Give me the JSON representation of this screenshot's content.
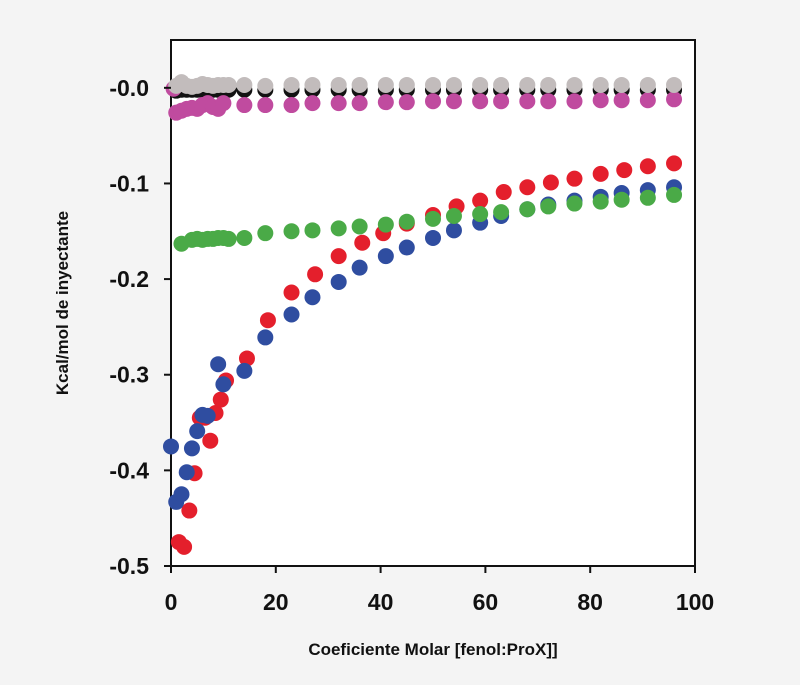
{
  "chart_data": {
    "type": "scatter",
    "title": "",
    "xlabel": "Coeficiente Molar [fenol:ProX]]",
    "ylabel": "Kcal/mol de inyectante",
    "xlim": [
      0,
      100
    ],
    "ylim": [
      -0.5,
      0.05
    ],
    "x_ticks": [
      0,
      20,
      40,
      60,
      80,
      100
    ],
    "x_tick_labels": [
      "0",
      "20",
      "40",
      "60",
      "80",
      "100"
    ],
    "y_ticks": [
      0.0,
      -0.1,
      -0.2,
      -0.3,
      -0.4,
      -0.5
    ],
    "y_tick_labels": [
      "-0.0",
      "-0.1",
      "-0.2",
      "-0.3",
      "-0.4",
      "-0.5"
    ],
    "grid": false,
    "legend": "none",
    "series": [
      {
        "color": "#121212",
        "points": [
          [
            1,
            -0.003
          ],
          [
            2,
            -0.002
          ],
          [
            3,
            -0.002
          ],
          [
            4,
            -0.002
          ],
          [
            5,
            -0.002
          ],
          [
            6,
            -0.002
          ],
          [
            7,
            -0.002
          ],
          [
            8,
            -0.002
          ],
          [
            9,
            -0.002
          ],
          [
            10,
            -0.002
          ],
          [
            11,
            -0.002
          ],
          [
            14,
            -0.002
          ],
          [
            18,
            -0.002
          ],
          [
            23,
            -0.002
          ],
          [
            27,
            -0.002
          ],
          [
            32,
            -0.002
          ],
          [
            36,
            -0.002
          ],
          [
            41,
            -0.002
          ],
          [
            45,
            -0.002
          ],
          [
            50,
            -0.002
          ],
          [
            54,
            -0.002
          ],
          [
            59,
            -0.002
          ],
          [
            63,
            -0.002
          ],
          [
            68,
            -0.002
          ],
          [
            72,
            -0.002
          ],
          [
            77,
            -0.002
          ],
          [
            82,
            -0.002
          ],
          [
            86,
            -0.002
          ],
          [
            91,
            -0.002
          ],
          [
            96,
            -0.002
          ]
        ]
      },
      {
        "color": "#c04b9f",
        "points": [
          [
            0.5,
            -0.001
          ],
          [
            1,
            -0.026
          ],
          [
            2,
            -0.024
          ],
          [
            3,
            -0.022
          ],
          [
            4,
            -0.021
          ],
          [
            5,
            -0.022
          ],
          [
            6,
            -0.018
          ],
          [
            7,
            -0.016
          ],
          [
            8,
            -0.02
          ],
          [
            9,
            -0.022
          ],
          [
            10,
            -0.016
          ],
          [
            14,
            -0.018
          ],
          [
            18,
            -0.018
          ],
          [
            23,
            -0.018
          ],
          [
            27,
            -0.016
          ],
          [
            32,
            -0.016
          ],
          [
            36,
            -0.016
          ],
          [
            41,
            -0.015
          ],
          [
            45,
            -0.015
          ],
          [
            50,
            -0.014
          ],
          [
            54,
            -0.014
          ],
          [
            59,
            -0.014
          ],
          [
            63,
            -0.014
          ],
          [
            68,
            -0.014
          ],
          [
            72,
            -0.014
          ],
          [
            77,
            -0.014
          ],
          [
            82,
            -0.013
          ],
          [
            86,
            -0.013
          ],
          [
            91,
            -0.013
          ],
          [
            96,
            -0.012
          ]
        ]
      },
      {
        "color": "#c2bcbc",
        "points": [
          [
            1,
            0.002
          ],
          [
            2,
            0.006
          ],
          [
            3,
            0.002
          ],
          [
            4,
            0.001
          ],
          [
            5,
            0.002
          ],
          [
            6,
            0.004
          ],
          [
            7,
            0.003
          ],
          [
            8,
            0.002
          ],
          [
            9,
            0.003
          ],
          [
            10,
            0.003
          ],
          [
            11,
            0.003
          ],
          [
            14,
            0.003
          ],
          [
            18,
            0.002
          ],
          [
            23,
            0.003
          ],
          [
            27,
            0.003
          ],
          [
            32,
            0.003
          ],
          [
            36,
            0.003
          ],
          [
            41,
            0.003
          ],
          [
            45,
            0.003
          ],
          [
            50,
            0.003
          ],
          [
            54,
            0.003
          ],
          [
            59,
            0.003
          ],
          [
            63,
            0.003
          ],
          [
            68,
            0.003
          ],
          [
            72,
            0.003
          ],
          [
            77,
            0.003
          ],
          [
            82,
            0.003
          ],
          [
            86,
            0.003
          ],
          [
            91,
            0.003
          ],
          [
            96,
            0.003
          ]
        ]
      },
      {
        "color": "#e41f2c",
        "points": [
          [
            1.5,
            -0.475
          ],
          [
            2.5,
            -0.48
          ],
          [
            3.5,
            -0.442
          ],
          [
            4.5,
            -0.403
          ],
          [
            5.5,
            -0.345
          ],
          [
            6.5,
            -0.345
          ],
          [
            7.5,
            -0.369
          ],
          [
            8.5,
            -0.34
          ],
          [
            9.5,
            -0.326
          ],
          [
            10.5,
            -0.306
          ],
          [
            14.5,
            -0.283
          ],
          [
            18.5,
            -0.243
          ],
          [
            23,
            -0.214
          ],
          [
            27.5,
            -0.195
          ],
          [
            32,
            -0.176
          ],
          [
            36.5,
            -0.162
          ],
          [
            40.5,
            -0.152
          ],
          [
            45,
            -0.142
          ],
          [
            50,
            -0.133
          ],
          [
            54.5,
            -0.124
          ],
          [
            59,
            -0.118
          ],
          [
            63.5,
            -0.109
          ],
          [
            68,
            -0.104
          ],
          [
            72.5,
            -0.099
          ],
          [
            77,
            -0.095
          ],
          [
            82,
            -0.09
          ],
          [
            86.5,
            -0.086
          ],
          [
            91,
            -0.082
          ],
          [
            96,
            -0.079
          ]
        ]
      },
      {
        "color": "#2f4da0",
        "points": [
          [
            0,
            -0.375
          ],
          [
            1,
            -0.433
          ],
          [
            2,
            -0.425
          ],
          [
            3,
            -0.402
          ],
          [
            4,
            -0.377
          ],
          [
            5,
            -0.359
          ],
          [
            6,
            -0.342
          ],
          [
            7,
            -0.343
          ],
          [
            9,
            -0.289
          ],
          [
            10,
            -0.31
          ],
          [
            14,
            -0.296
          ],
          [
            18,
            -0.261
          ],
          [
            23,
            -0.237
          ],
          [
            27,
            -0.219
          ],
          [
            32,
            -0.203
          ],
          [
            36,
            -0.188
          ],
          [
            41,
            -0.176
          ],
          [
            45,
            -0.167
          ],
          [
            50,
            -0.157
          ],
          [
            54,
            -0.149
          ],
          [
            59,
            -0.141
          ],
          [
            63,
            -0.134
          ],
          [
            68,
            -0.127
          ],
          [
            72,
            -0.122
          ],
          [
            77,
            -0.118
          ],
          [
            82,
            -0.114
          ],
          [
            86,
            -0.11
          ],
          [
            91,
            -0.107
          ],
          [
            96,
            -0.104
          ]
        ]
      },
      {
        "color": "#4aaa47",
        "points": [
          [
            2,
            -0.163
          ],
          [
            4,
            -0.159
          ],
          [
            5,
            -0.158
          ],
          [
            6,
            -0.159
          ],
          [
            7,
            -0.158
          ],
          [
            8,
            -0.158
          ],
          [
            9,
            -0.157
          ],
          [
            10,
            -0.157
          ],
          [
            11,
            -0.158
          ],
          [
            14,
            -0.157
          ],
          [
            18,
            -0.152
          ],
          [
            23,
            -0.15
          ],
          [
            27,
            -0.149
          ],
          [
            32,
            -0.147
          ],
          [
            36,
            -0.145
          ],
          [
            41,
            -0.143
          ],
          [
            45,
            -0.14
          ],
          [
            50,
            -0.137
          ],
          [
            54,
            -0.134
          ],
          [
            59,
            -0.132
          ],
          [
            63,
            -0.13
          ],
          [
            68,
            -0.127
          ],
          [
            72,
            -0.124
          ],
          [
            77,
            -0.121
          ],
          [
            82,
            -0.119
          ],
          [
            86,
            -0.117
          ],
          [
            91,
            -0.115
          ],
          [
            96,
            -0.112
          ]
        ]
      }
    ]
  }
}
